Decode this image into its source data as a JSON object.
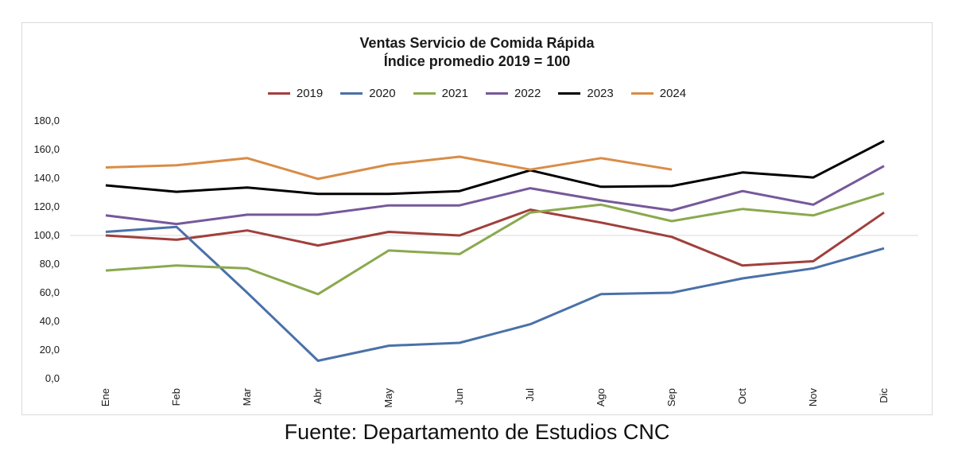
{
  "chart_data": {
    "type": "line",
    "title": "Ventas Servicio de Comida Rápida",
    "subtitle": "Índice promedio 2019 = 100",
    "categories": [
      "Ene",
      "Feb",
      "Mar",
      "Abr",
      "May",
      "Jun",
      "Jul",
      "Ago",
      "Sep",
      "Oct",
      "Nov",
      "Dic"
    ],
    "ylim": [
      0,
      180
    ],
    "yticks": [
      "0,0",
      "20,0",
      "40,0",
      "60,0",
      "80,0",
      "100,0",
      "120,0",
      "140,0",
      "160,0",
      "180,0"
    ],
    "reference_line": 100,
    "legend_position": "top",
    "series": [
      {
        "name": "2019",
        "color": "#a0403c",
        "values": [
          100,
          97,
          103.5,
          93,
          102.5,
          100,
          118,
          109,
          99,
          79,
          82,
          116
        ]
      },
      {
        "name": "2020",
        "color": "#4a71a8",
        "values": [
          102.5,
          106,
          60,
          12.5,
          23,
          25,
          38,
          59,
          60,
          70,
          77,
          91
        ]
      },
      {
        "name": "2021",
        "color": "#8aa94e",
        "values": [
          75.5,
          79,
          77,
          59,
          89.5,
          87,
          116,
          121.5,
          110,
          118.5,
          114,
          129.5
        ]
      },
      {
        "name": "2022",
        "color": "#76589a",
        "values": [
          114,
          108,
          114.5,
          114.5,
          121,
          121,
          133,
          124.5,
          117.5,
          131,
          121.5,
          148.5
        ]
      },
      {
        "name": "2023",
        "color": "#000000",
        "values": [
          135,
          130.5,
          133.5,
          129,
          129,
          131,
          145.5,
          134,
          134.5,
          144,
          140.5,
          166
        ]
      },
      {
        "name": "2024",
        "color": "#d98c47",
        "values": [
          147.5,
          149,
          154,
          139.5,
          149.5,
          155,
          146,
          154,
          146,
          null,
          null,
          null
        ]
      }
    ]
  },
  "source": "Fuente: Departamento de Estudios CNC"
}
